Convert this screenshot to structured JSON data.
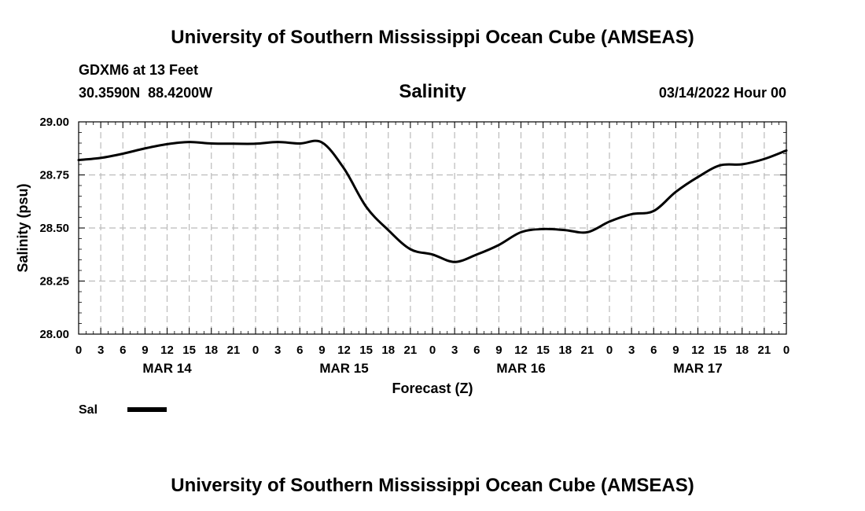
{
  "header": {
    "title": "University of Southern Mississippi Ocean Cube (AMSEAS)",
    "station": "GDXM6 at 13 Feet",
    "coords": "30.3590N  88.4200W",
    "chart_title": "Salinity",
    "run_time": "03/14/2022 Hour 00"
  },
  "footer": {
    "title": "University of Southern Mississippi Ocean Cube (AMSEAS)"
  },
  "chart_data": {
    "type": "line",
    "title": "Salinity",
    "xlabel": "Forecast (Z)",
    "ylabel": "Salinity (psu)",
    "ylim": [
      28.0,
      29.0
    ],
    "xlim_hours": [
      0,
      96
    ],
    "yticks": [
      "29.00",
      "28.75",
      "28.50",
      "28.25",
      "28.00"
    ],
    "ytick_values": [
      29.0,
      28.75,
      28.5,
      28.25,
      28.0
    ],
    "xtick_labels": [
      "0",
      "3",
      "6",
      "9",
      "12",
      "15",
      "18",
      "21",
      "0",
      "3",
      "6",
      "9",
      "12",
      "15",
      "18",
      "21",
      "0",
      "3",
      "6",
      "9",
      "12",
      "15",
      "18",
      "21",
      "0",
      "3",
      "6",
      "9",
      "12",
      "15",
      "18",
      "21",
      "0"
    ],
    "day_labels": [
      {
        "label": "MAR 14",
        "hour": 12
      },
      {
        "label": "MAR 15",
        "hour": 36
      },
      {
        "label": "MAR 16",
        "hour": 60
      },
      {
        "label": "MAR 17",
        "hour": 84
      }
    ],
    "grid": true,
    "legend": "bottom-left",
    "series": [
      {
        "name": "Sal",
        "color": "#000000",
        "x": [
          0,
          3,
          6,
          9,
          12,
          15,
          18,
          21,
          24,
          27,
          30,
          33,
          36,
          39,
          42,
          45,
          48,
          51,
          54,
          57,
          60,
          63,
          66,
          69,
          72,
          75,
          78,
          81,
          84,
          87,
          90,
          93,
          96
        ],
        "values": [
          28.82,
          28.83,
          28.85,
          28.875,
          28.895,
          28.905,
          28.898,
          28.897,
          28.897,
          28.905,
          28.898,
          28.903,
          28.78,
          28.6,
          28.49,
          28.4,
          28.375,
          28.34,
          28.375,
          28.42,
          28.48,
          28.495,
          28.49,
          28.48,
          28.53,
          28.565,
          28.58,
          28.67,
          28.74,
          28.795,
          28.8,
          28.825,
          28.865
        ]
      }
    ]
  }
}
